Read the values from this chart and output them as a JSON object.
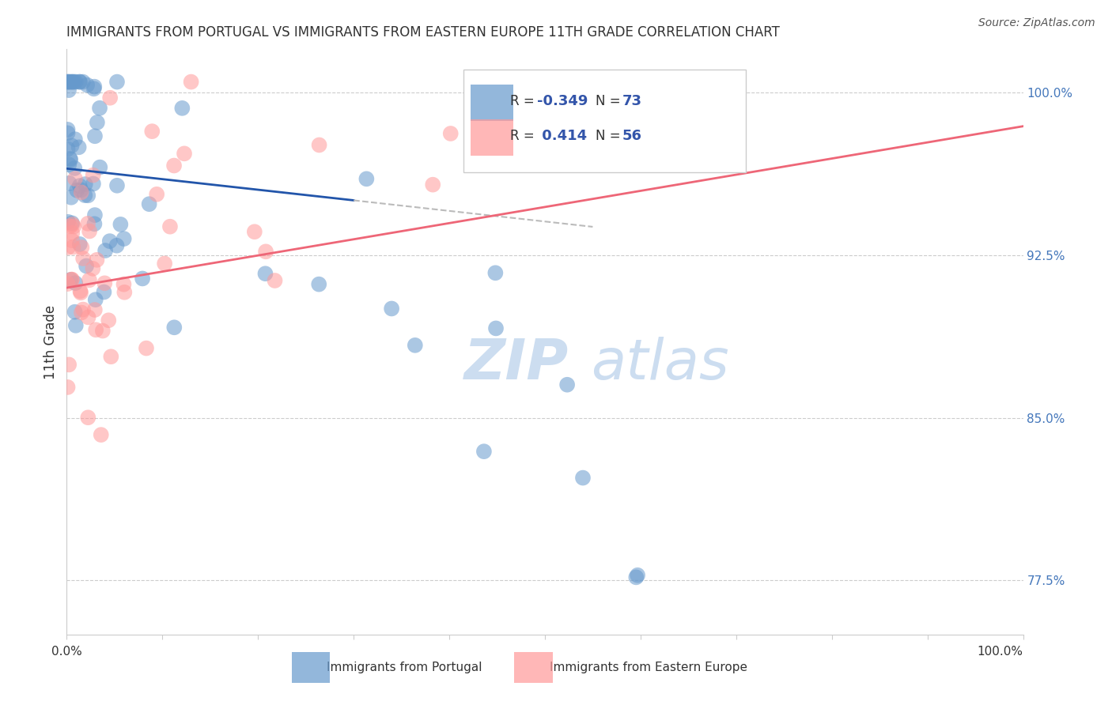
{
  "title": "IMMIGRANTS FROM PORTUGAL VS IMMIGRANTS FROM EASTERN EUROPE 11TH GRADE CORRELATION CHART",
  "source": "Source: ZipAtlas.com",
  "ylabel": "11th Grade",
  "right_ytick_labels": [
    "77.5%",
    "85.0%",
    "92.5%",
    "100.0%"
  ],
  "right_yticks": [
    77.5,
    85.0,
    92.5,
    100.0
  ],
  "blue_color": "#6699cc",
  "pink_color": "#ff9999",
  "blue_line_color": "#2255aa",
  "pink_line_color": "#ee6677",
  "dashed_line_color": "#bbbbbb",
  "watermark_zip_color": "#ccddf0",
  "watermark_atlas_color": "#ccddf0",
  "grid_color": "#cccccc",
  "xlim": [
    0,
    100
  ],
  "ylim": [
    75,
    102
  ]
}
